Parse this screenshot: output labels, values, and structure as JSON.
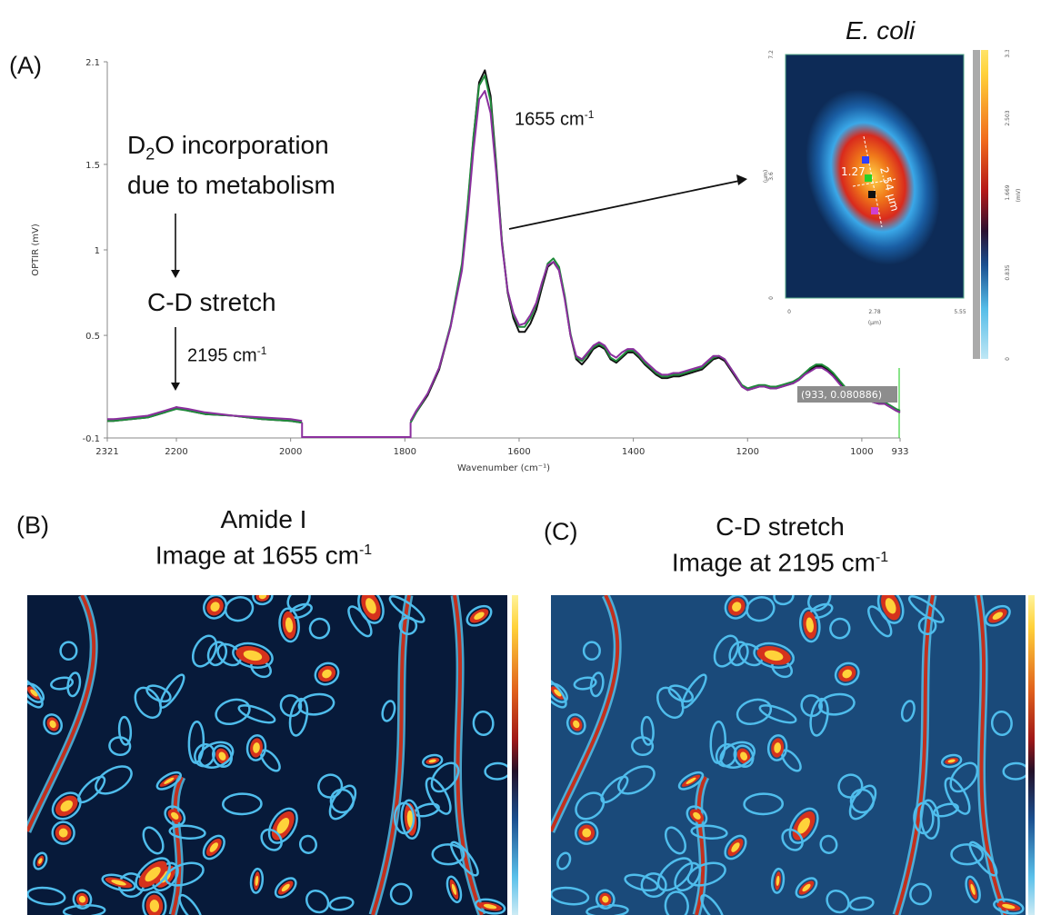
{
  "panel_a": {
    "label": "(A)",
    "annotation_d2o_line1": "D",
    "annotation_d2o_sub": "2",
    "annotation_d2o_line1_rest": "O incorporation",
    "annotation_d2o_line2": "due to metabolism",
    "annotation_cd": "C-D stretch",
    "annotation_2195": "2195 cm",
    "annotation_1655": "1655 cm",
    "sup_minus1": "-1",
    "tooltip": "(933, 0.080886)"
  },
  "inset": {
    "title": "E. coli",
    "y_ticks": [
      "7.2",
      "3.6",
      "0"
    ],
    "y_unit": "(µm)",
    "x_ticks": [
      "0",
      "2.78",
      "5.55"
    ],
    "x_unit": "(µm)",
    "colorbar_ticks": [
      "3.338",
      "2.503",
      "1.669",
      "0.835",
      "0"
    ],
    "colorbar_unit": "(mV)",
    "measure_length": "2.54 µm",
    "measure_width": "1.27"
  },
  "panel_b": {
    "label": "(B)",
    "title_line1": "Amide I",
    "title_line2": "Image at 1655 cm",
    "sup": "-1"
  },
  "panel_c": {
    "label": "(C)",
    "title_line1": "C-D stretch",
    "title_line2": "Image at 2195 cm",
    "sup": "-1"
  },
  "chart_data": {
    "type": "line",
    "title": "",
    "xlabel": "Wavenumber (cm⁻¹)",
    "ylabel": "OPTIR (mV)",
    "xlim": [
      2321,
      933
    ],
    "ylim": [
      -0.1,
      2.1
    ],
    "x_ticks": [
      2321,
      2200,
      2000,
      1800,
      1600,
      1400,
      1200,
      1000,
      933
    ],
    "y_ticks": [
      -0.1,
      0.5,
      1,
      1.5,
      2.1
    ],
    "series": [
      {
        "name": "spectrum-black",
        "color": "#111111",
        "segments": [
          {
            "x": [
              2321,
              2310,
              2250,
              2220,
              2200,
              2180,
              2150,
              2100,
              2050,
              2000,
              1980
            ],
            "y": [
              0.0,
              0.0,
              0.02,
              0.05,
              0.08,
              0.06,
              0.04,
              0.03,
              0.01,
              0.0,
              -0.01
            ]
          },
          {
            "x": [
              1790,
              1780,
              1760,
              1740,
              1720,
              1700,
              1690,
              1680,
              1670,
              1660,
              1650,
              1640,
              1630,
              1620,
              1610,
              1600,
              1590,
              1580,
              1570,
              1560,
              1550,
              1540,
              1530,
              1520,
              1510,
              1500,
              1490,
              1480,
              1470,
              1460,
              1450,
              1440,
              1430,
              1420,
              1410,
              1400,
              1390,
              1380,
              1370,
              1360,
              1350,
              1340,
              1330,
              1320,
              1310,
              1300,
              1290,
              1280,
              1270,
              1260,
              1250,
              1240,
              1230,
              1220,
              1210,
              1200,
              1190,
              1180,
              1170,
              1160,
              1150,
              1140,
              1130,
              1120,
              1110,
              1100,
              1090,
              1080,
              1070,
              1060,
              1050,
              1040,
              1030,
              1020,
              1010,
              1000,
              990,
              980,
              970,
              960,
              950,
              940,
              933
            ],
            "y": [
              -0.01,
              0.05,
              0.15,
              0.3,
              0.55,
              0.9,
              1.25,
              1.65,
              1.98,
              2.05,
              1.9,
              1.5,
              1.05,
              0.75,
              0.6,
              0.52,
              0.52,
              0.57,
              0.65,
              0.78,
              0.9,
              0.93,
              0.88,
              0.72,
              0.5,
              0.36,
              0.33,
              0.37,
              0.42,
              0.44,
              0.42,
              0.36,
              0.34,
              0.37,
              0.4,
              0.4,
              0.37,
              0.33,
              0.3,
              0.27,
              0.25,
              0.25,
              0.26,
              0.26,
              0.27,
              0.28,
              0.29,
              0.3,
              0.33,
              0.36,
              0.37,
              0.35,
              0.3,
              0.25,
              0.2,
              0.18,
              0.19,
              0.2,
              0.2,
              0.19,
              0.19,
              0.2,
              0.21,
              0.22,
              0.24,
              0.27,
              0.3,
              0.32,
              0.32,
              0.3,
              0.27,
              0.23,
              0.19,
              0.16,
              0.14,
              0.12,
              0.12,
              0.11,
              0.1,
              0.1,
              0.08,
              0.06,
              0.05
            ]
          }
        ]
      },
      {
        "name": "spectrum-green",
        "color": "#1f8a3a",
        "segments": [
          {
            "x": [
              2321,
              2310,
              2250,
              2220,
              2200,
              2180,
              2150,
              2100,
              2050,
              2000,
              1980
            ],
            "y": [
              0.0,
              0.0,
              0.02,
              0.05,
              0.07,
              0.06,
              0.04,
              0.03,
              0.01,
              0.0,
              -0.01
            ]
          },
          {
            "x": [
              1790,
              1780,
              1760,
              1740,
              1720,
              1700,
              1690,
              1680,
              1670,
              1660,
              1650,
              1640,
              1630,
              1620,
              1610,
              1600,
              1590,
              1580,
              1570,
              1560,
              1550,
              1540,
              1530,
              1520,
              1510,
              1500,
              1490,
              1480,
              1470,
              1460,
              1450,
              1440,
              1430,
              1420,
              1410,
              1400,
              1390,
              1380,
              1370,
              1360,
              1350,
              1340,
              1330,
              1320,
              1310,
              1300,
              1290,
              1280,
              1270,
              1260,
              1250,
              1240,
              1230,
              1220,
              1210,
              1200,
              1190,
              1180,
              1170,
              1160,
              1150,
              1140,
              1130,
              1120,
              1110,
              1100,
              1090,
              1080,
              1070,
              1060,
              1050,
              1040,
              1030,
              1020,
              1010,
              1000,
              990,
              980,
              970,
              960,
              950,
              940,
              933
            ],
            "y": [
              -0.01,
              0.05,
              0.16,
              0.31,
              0.56,
              0.92,
              1.27,
              1.66,
              1.96,
              2.02,
              1.87,
              1.48,
              1.04,
              0.76,
              0.62,
              0.55,
              0.55,
              0.6,
              0.68,
              0.8,
              0.92,
              0.95,
              0.9,
              0.73,
              0.51,
              0.37,
              0.35,
              0.39,
              0.43,
              0.45,
              0.43,
              0.37,
              0.35,
              0.38,
              0.41,
              0.41,
              0.38,
              0.34,
              0.31,
              0.28,
              0.26,
              0.26,
              0.27,
              0.27,
              0.28,
              0.29,
              0.3,
              0.31,
              0.34,
              0.37,
              0.38,
              0.36,
              0.31,
              0.26,
              0.21,
              0.19,
              0.2,
              0.21,
              0.21,
              0.2,
              0.2,
              0.21,
              0.22,
              0.23,
              0.25,
              0.28,
              0.31,
              0.33,
              0.33,
              0.31,
              0.28,
              0.24,
              0.2,
              0.17,
              0.15,
              0.13,
              0.13,
              0.12,
              0.11,
              0.11,
              0.09,
              0.07,
              0.06
            ]
          }
        ]
      },
      {
        "name": "spectrum-purple",
        "color": "#8b2f9e",
        "segments": [
          {
            "x": [
              2321,
              2310,
              2250,
              2220,
              2200,
              2180,
              2150,
              2100,
              2050,
              2000,
              1980
            ],
            "y": [
              0.01,
              0.01,
              0.03,
              0.06,
              0.08,
              0.07,
              0.05,
              0.03,
              0.02,
              0.01,
              0.0
            ]
          },
          {
            "x": [
              1790,
              1780,
              1760,
              1740,
              1720,
              1700,
              1690,
              1680,
              1670,
              1660,
              1650,
              1640,
              1630,
              1620,
              1610,
              1600,
              1590,
              1580,
              1570,
              1560,
              1550,
              1540,
              1530,
              1520,
              1510,
              1500,
              1490,
              1480,
              1470,
              1460,
              1450,
              1440,
              1430,
              1420,
              1410,
              1400,
              1390,
              1380,
              1370,
              1360,
              1350,
              1340,
              1330,
              1320,
              1310,
              1300,
              1290,
              1280,
              1270,
              1260,
              1250,
              1240,
              1230,
              1220,
              1210,
              1200,
              1190,
              1180,
              1170,
              1160,
              1150,
              1140,
              1130,
              1120,
              1110,
              1100,
              1090,
              1080,
              1070,
              1060,
              1050,
              1040,
              1030,
              1020,
              1010,
              1000,
              990,
              980,
              970,
              960,
              950,
              940,
              933
            ],
            "y": [
              0.0,
              0.06,
              0.16,
              0.31,
              0.55,
              0.88,
              1.2,
              1.58,
              1.88,
              1.93,
              1.8,
              1.45,
              1.03,
              0.76,
              0.63,
              0.56,
              0.57,
              0.62,
              0.69,
              0.81,
              0.91,
              0.93,
              0.88,
              0.71,
              0.5,
              0.38,
              0.36,
              0.4,
              0.44,
              0.46,
              0.44,
              0.39,
              0.37,
              0.4,
              0.42,
              0.42,
              0.39,
              0.35,
              0.32,
              0.29,
              0.27,
              0.27,
              0.28,
              0.28,
              0.29,
              0.3,
              0.31,
              0.32,
              0.35,
              0.38,
              0.38,
              0.36,
              0.31,
              0.26,
              0.2,
              0.18,
              0.19,
              0.2,
              0.2,
              0.19,
              0.19,
              0.2,
              0.21,
              0.22,
              0.24,
              0.27,
              0.29,
              0.31,
              0.31,
              0.29,
              0.26,
              0.22,
              0.18,
              0.15,
              0.13,
              0.12,
              0.12,
              0.11,
              0.1,
              0.1,
              0.08,
              0.06,
              0.05
            ]
          }
        ]
      }
    ]
  }
}
